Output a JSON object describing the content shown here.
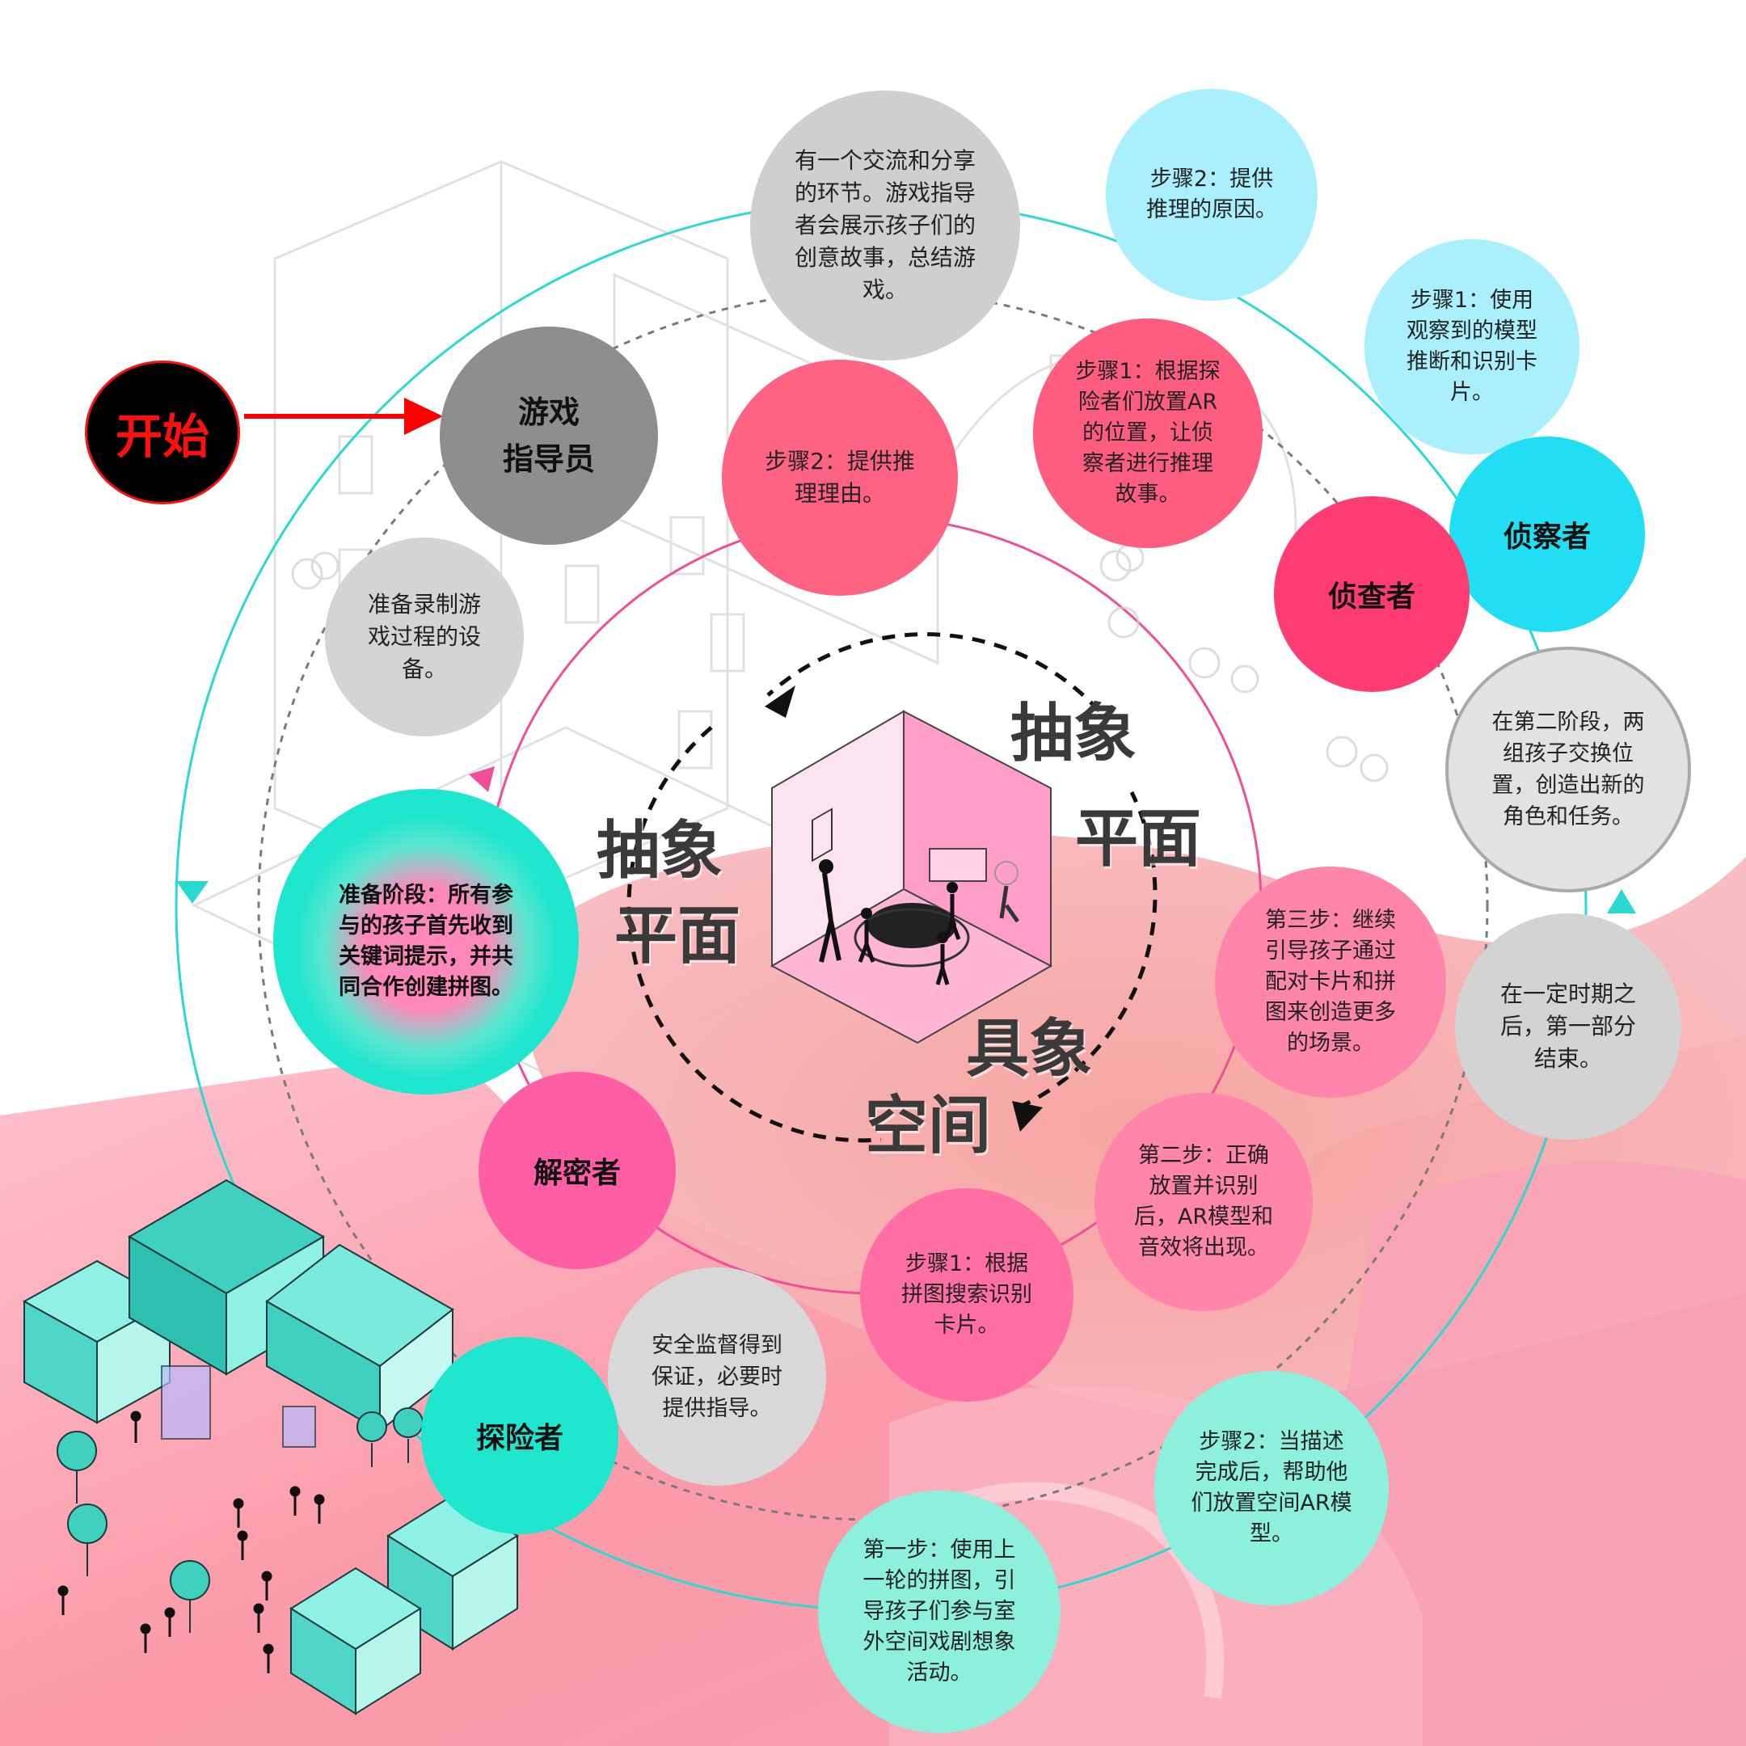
{
  "colors": {
    "cyan_ring": "#2ad9d0",
    "pink_ring": "#ee4f98",
    "dashed_ring": "#7a7a7a",
    "start_bg": "#000000",
    "start_text": "#ff1010",
    "start_arrow": "#ff0000"
  },
  "start": {
    "label": "开始"
  },
  "center": {
    "labels": {
      "left_top": "抽象",
      "left_bottom": "平面",
      "right_top": "抽象",
      "right_mid": "平面",
      "bottom_right": "具象",
      "bottom": "空间"
    }
  },
  "nodes": {
    "share": {
      "text": "有一个交流和分享\n的环节。游戏指导\n者会展示孩子们的\n创意故事，总结游\n戏。"
    },
    "guide": {
      "text": "游戏\n指导员"
    },
    "prep_equipment": {
      "text": "准备录制游\n戏过程的设\n备。"
    },
    "step2_reason_cyan": {
      "text": "步骤2：提供\n推理的原因。"
    },
    "step1_observe": {
      "text": "步骤1：使用\n观察到的模型\n推断和识别卡\n片。"
    },
    "detective_cyan": {
      "text": "侦察者"
    },
    "step2_reason_pink": {
      "text": "步骤2：提供推\n理理由。"
    },
    "step1_ar_place": {
      "text": "步骤1：根据探\n险者们放置AR\n的位置，让侦\n察者进行推理\n故事。"
    },
    "investigator": {
      "text": "侦查者"
    },
    "phase2_swap": {
      "text": "在第二阶段，两\n组孩子交换位\n置，创造出新的\n角色和任务。"
    },
    "prep_stage": {
      "text": "准备阶段：所有参\n与的孩子首先收到\n关键词提示，并共\n同合作创建拼图。"
    },
    "step3_continue": {
      "text": "第三步：继续\n引导孩子通过\n配对卡片和拼\n图来创造更多\n的场景。"
    },
    "part1_end": {
      "text": "在一定时期之\n后，第一部分\n结束。"
    },
    "decoder": {
      "text": "解密者"
    },
    "step2_correct": {
      "text": "第二步：正确\n放置并识别\n后，AR模型和\n音效将出现。"
    },
    "step1_search": {
      "text": "步骤1：根据\n拼图搜索识别\n卡片。"
    },
    "safety": {
      "text": "安全监督得到\n保证，必要时\n提供指导。"
    },
    "explorer": {
      "text": "探险者"
    },
    "step2_place_ar": {
      "text": "步骤2：当描述\n完成后，帮助他\n们放置空间AR模\n型。"
    },
    "step1_outdoor": {
      "text": "第一步：使用上\n一轮的拼图，引\n导孩子们参与室\n外空间戏剧想象\n活动。"
    }
  }
}
